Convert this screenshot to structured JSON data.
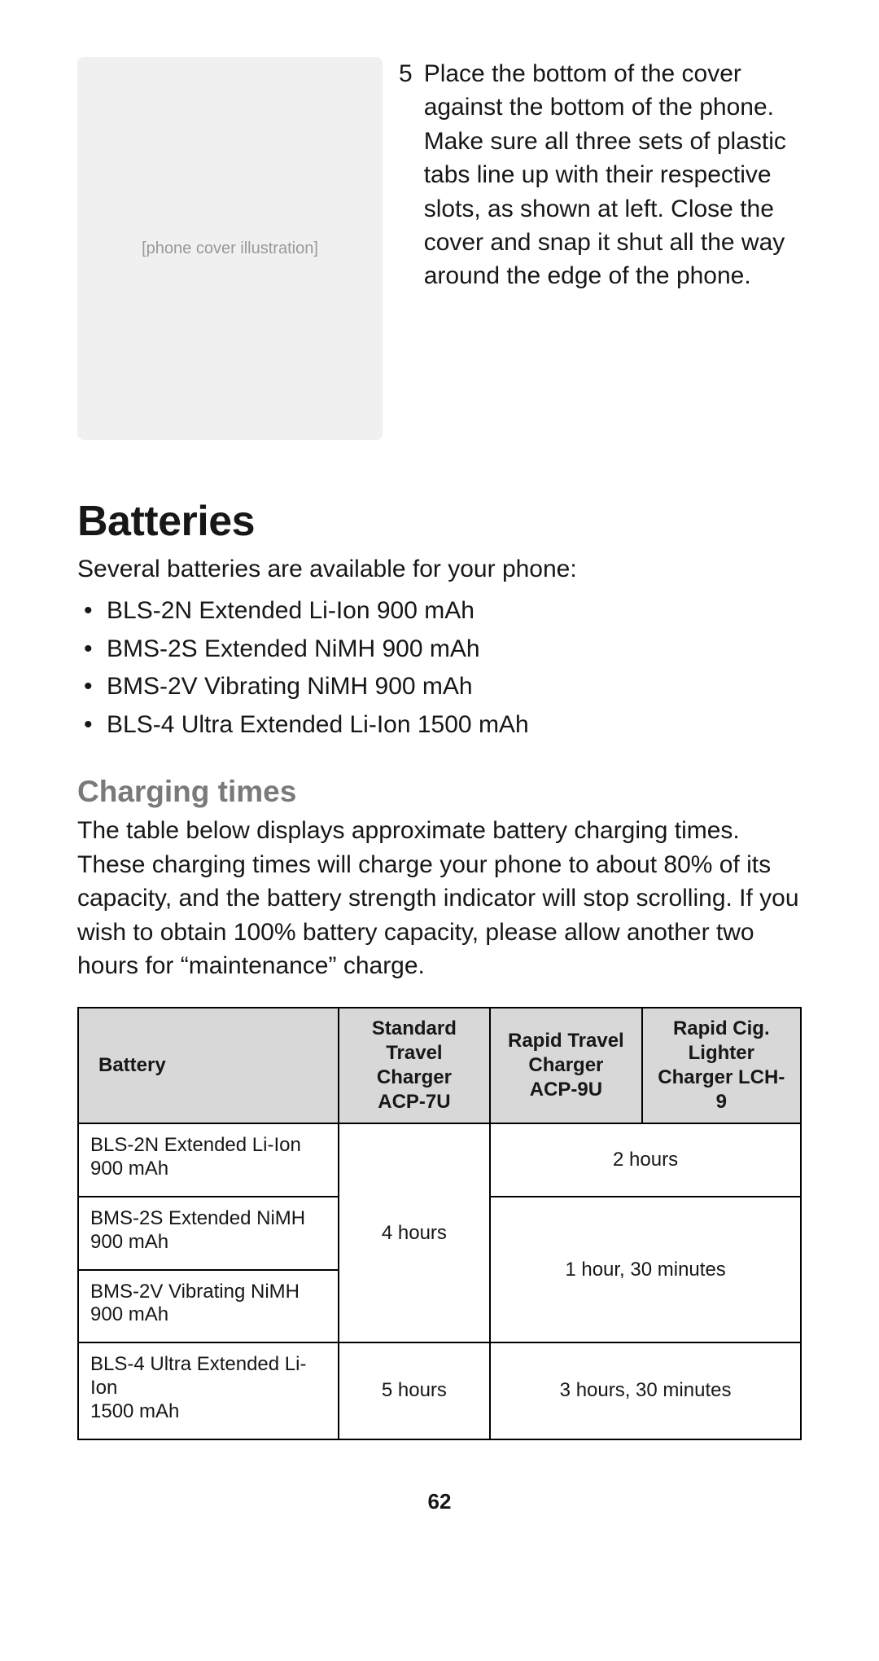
{
  "step": {
    "number": "5",
    "text": "Place the bottom of the cover against the bottom of the phone. Make sure all three sets of plastic tabs line up with their respective slots, as shown at left. Close the cover and snap it shut all the way around the edge of the phone."
  },
  "illustration_label": "[phone cover illustration]",
  "headings": {
    "batteries": "Batteries",
    "charging": "Charging times"
  },
  "batteries_intro": "Several batteries are available for your phone:",
  "battery_list": [
    "BLS-2N Extended Li-Ion 900 mAh",
    "BMS-2S Extended NiMH 900 mAh",
    "BMS-2V Vibrating NiMH 900 mAh",
    "BLS-4 Ultra Extended Li-Ion 1500 mAh"
  ],
  "charging_text": "The table below displays approximate battery charging times. These charging times will charge your phone to about 80% of its capacity, and the battery strength indicator will stop scrolling. If you wish to obtain 100% battery capacity, please allow another two hours for “maintenance” charge.",
  "table": {
    "headers": {
      "battery": "Battery",
      "col1_lines": [
        "Standard",
        "Travel",
        "Charger",
        "ACP-7U"
      ],
      "col2_lines": [
        "Rapid Travel",
        "Charger",
        "ACP-9U"
      ],
      "col3_lines": [
        "Rapid Cig.",
        "Lighter",
        "Charger LCH-9"
      ]
    },
    "rows": {
      "r1_batt_lines": [
        "BLS-2N Extended Li-Ion",
        "900 mAh"
      ],
      "r2_batt_lines": [
        "BMS-2S Extended NiMH",
        "900 mAh"
      ],
      "r3_batt_lines": [
        "BMS-2V Vibrating NiMH",
        "900 mAh"
      ],
      "r4_batt_lines": [
        "BLS-4 Ultra Extended Li-Ion",
        "1500 mAh"
      ]
    },
    "values": {
      "std_4h": "4 hours",
      "rapid_2h": "2 hours",
      "rapid_1h30": "1 hour, 30 minutes",
      "std_5h": "5 hours",
      "rapid_3h30": "3 hours, 30 minutes"
    }
  },
  "page_number": "62",
  "colors": {
    "text": "#171717",
    "subhead": "#7a7a7a",
    "table_header_bg": "#d8d8d8",
    "border": "#000000",
    "background": "#ffffff"
  },
  "typography": {
    "body_pt": 30,
    "h1_pt": 52,
    "h2_pt": 37,
    "table_pt": 24,
    "page_num_pt": 26
  }
}
